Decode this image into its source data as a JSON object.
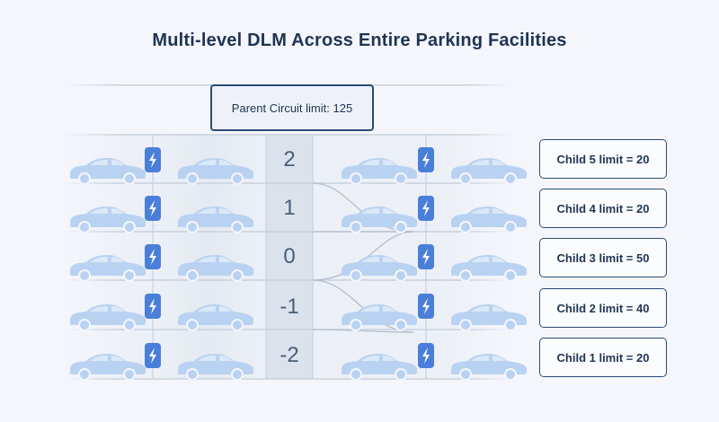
{
  "title": "Multi-level DLM Across Entire Parking Facilities",
  "parent": {
    "label": "Parent Circuit limit: 125"
  },
  "levels": [
    "2",
    "1",
    "0",
    "-1",
    "-2"
  ],
  "children": [
    {
      "label": "Child 5 limit = 20"
    },
    {
      "label": "Child 4 limit = 20"
    },
    {
      "label": "Child 3 limit = 50"
    },
    {
      "label": "Child 2 limit = 40"
    },
    {
      "label": "Child 1 limit = 20"
    }
  ],
  "colors": {
    "navy": "#1f3454",
    "box_border": "#2a4a78",
    "charger": "#4a7fd9",
    "car": "#b9d2f2",
    "grid_line": "#c9d0dc"
  }
}
